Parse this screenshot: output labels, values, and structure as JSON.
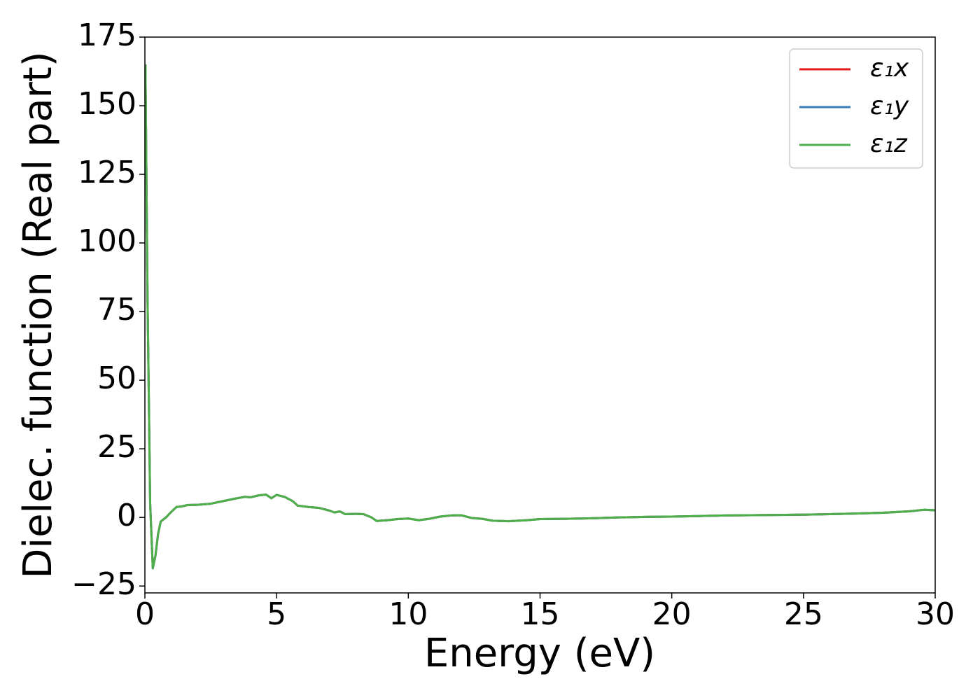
{
  "chart_data": {
    "type": "line",
    "xlabel": "Energy (eV)",
    "ylabel": "Dielec. function (Real part)",
    "xlim": [
      0,
      30
    ],
    "xticks": [
      0,
      5,
      10,
      15,
      20,
      25,
      30
    ],
    "ylim": [
      -27.5,
      175
    ],
    "yticks": [
      {
        "value": -25,
        "label": "−25"
      },
      0,
      25,
      50,
      75,
      100,
      125,
      150,
      175
    ],
    "legend": "upper right",
    "x": [
      0.02,
      0.1,
      0.2,
      0.3,
      0.4,
      0.5,
      0.6,
      0.8,
      1.0,
      1.2,
      1.4,
      1.6,
      2.0,
      2.5,
      3.0,
      3.5,
      3.8,
      4.0,
      4.3,
      4.6,
      4.8,
      5.0,
      5.3,
      5.6,
      5.8,
      6.2,
      6.6,
      7.0,
      7.2,
      7.4,
      7.6,
      8.0,
      8.3,
      8.6,
      8.8,
      9.2,
      9.6,
      10.0,
      10.4,
      10.8,
      11.2,
      11.6,
      12.0,
      12.4,
      12.8,
      13.2,
      13.8,
      14.5,
      15.0,
      16,
      17,
      18,
      19,
      20,
      21,
      22,
      23,
      24,
      25,
      26,
      27,
      28,
      29,
      29.6,
      30
    ],
    "series": [
      {
        "name": "ε₁x",
        "color": "#e41a1c",
        "values": [
          165,
          80,
          5,
          -18.5,
          -14,
          -6,
          -1.5,
          0,
          2,
          3.8,
          4,
          4.5,
          4.6,
          5,
          6,
          7,
          7.5,
          7.3,
          8,
          8.3,
          7,
          8.2,
          7.5,
          6,
          4.3,
          3.8,
          3.5,
          2.5,
          1.8,
          2.2,
          1.2,
          1.3,
          1.2,
          0,
          -1.3,
          -1,
          -0.6,
          -0.4,
          -1,
          -0.5,
          0.3,
          0.7,
          0.8,
          -0.2,
          -0.5,
          -1.2,
          -1.4,
          -1,
          -0.6,
          -0.5,
          -0.3,
          0,
          0.2,
          0.3,
          0.5,
          0.7,
          0.8,
          0.9,
          1.0,
          1.2,
          1.4,
          1.7,
          2.2,
          2.8,
          2.6
        ]
      },
      {
        "name": "ε₁y",
        "color": "#377eb8",
        "values": [
          165,
          80,
          5,
          -18.5,
          -14,
          -6,
          -1.5,
          0,
          2,
          3.8,
          4,
          4.5,
          4.6,
          5,
          6,
          7,
          7.5,
          7.3,
          8,
          8.3,
          7,
          8.2,
          7.5,
          6,
          4.3,
          3.8,
          3.5,
          2.5,
          1.8,
          2.2,
          1.2,
          1.3,
          1.2,
          0,
          -1.3,
          -1,
          -0.6,
          -0.4,
          -1,
          -0.5,
          0.3,
          0.7,
          0.8,
          -0.2,
          -0.5,
          -1.2,
          -1.4,
          -1,
          -0.6,
          -0.5,
          -0.3,
          0,
          0.2,
          0.3,
          0.5,
          0.7,
          0.8,
          0.9,
          1.0,
          1.2,
          1.4,
          1.7,
          2.2,
          2.8,
          2.6
        ]
      },
      {
        "name": "ε₁z",
        "color": "#4daf4a",
        "values": [
          165,
          80,
          5,
          -18.5,
          -14,
          -6,
          -1.5,
          0,
          2,
          3.8,
          4,
          4.5,
          4.6,
          5,
          6,
          7,
          7.5,
          7.3,
          8,
          8.3,
          7,
          8.2,
          7.5,
          6,
          4.3,
          3.8,
          3.5,
          2.5,
          1.8,
          2.2,
          1.2,
          1.3,
          1.2,
          0,
          -1.3,
          -1,
          -0.6,
          -0.4,
          -1,
          -0.5,
          0.3,
          0.7,
          0.8,
          -0.2,
          -0.5,
          -1.2,
          -1.4,
          -1,
          -0.6,
          -0.5,
          -0.3,
          0,
          0.2,
          0.3,
          0.5,
          0.7,
          0.8,
          0.9,
          1.0,
          1.2,
          1.4,
          1.7,
          2.2,
          2.8,
          2.6
        ]
      }
    ]
  }
}
